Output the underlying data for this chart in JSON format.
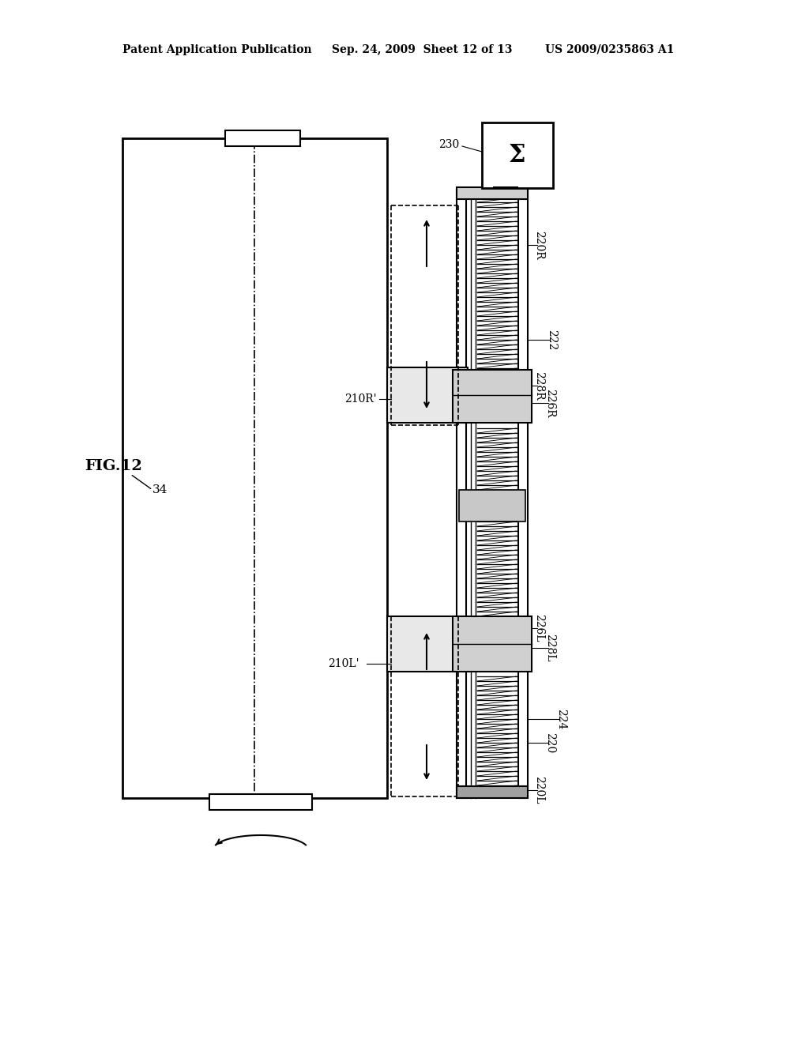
{
  "bg_color": "#ffffff",
  "header_text1": "Patent Application Publication",
  "header_text2": "Sep. 24, 2009  Sheet 12 of 13",
  "header_text3": "US 2009/0235863 A1",
  "fig_label": "FIG.12",
  "label_34": "34",
  "label_230": "230",
  "label_220R": "220R",
  "label_222": "222",
  "label_228R": "228R",
  "label_226R": "226R",
  "label_226L": "226L",
  "label_228L": "228L",
  "label_224": "224",
  "label_220": "220",
  "label_220L": "220L",
  "label_210R": "210R'",
  "label_210L": "210L'",
  "sigma_symbol": "Σ"
}
